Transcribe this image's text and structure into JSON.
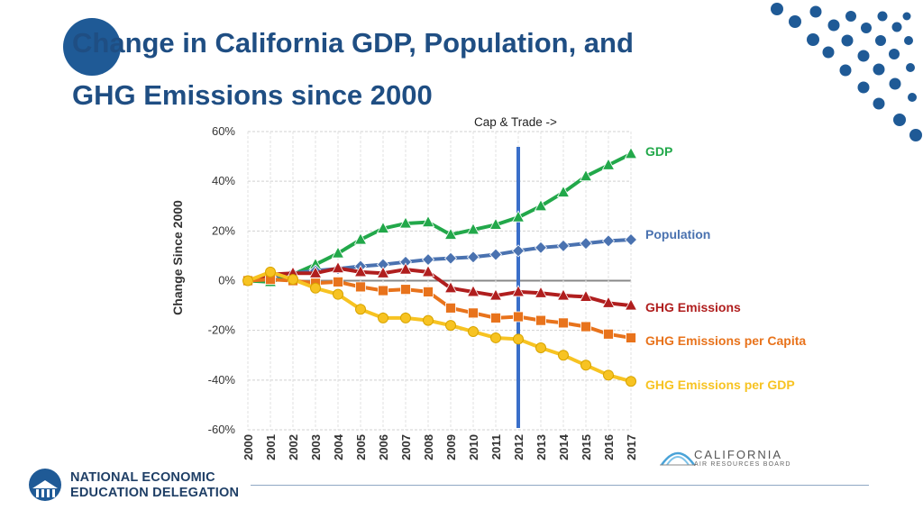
{
  "slide": {
    "title_line1": "Change in California GDP, Population, and",
    "title_line2": "GHG Emissions since 2000"
  },
  "footer": {
    "org_line1": "NATIONAL ECONOMIC",
    "org_line2": "EDUCATION DELEGATION",
    "carb_name": "CALIFORNIA",
    "carb_sub": "AIR RESOURCES BOARD"
  },
  "colors": {
    "title": "#1f4e83",
    "dots": "#1f5a96",
    "gdp": "#22a84a",
    "population": "#4a72b0",
    "ghg": "#b01e1e",
    "ghg_per_capita": "#e8731c",
    "ghg_per_gdp": "#f7c322",
    "marker_line": "#3a6fc9"
  },
  "chart_data": {
    "type": "line",
    "title": "",
    "xlabel": "",
    "ylabel": "Change Since 2000",
    "x": [
      "2000",
      "2001",
      "2002",
      "2003",
      "2004",
      "2005",
      "2006",
      "2007",
      "2008",
      "2009",
      "2010",
      "2011",
      "2012",
      "2013",
      "2014",
      "2015",
      "2016",
      "2017"
    ],
    "ylim": [
      -60,
      60
    ],
    "yticks": [
      60,
      40,
      20,
      0,
      -20,
      -40,
      -60
    ],
    "ytick_labels": [
      "60%",
      "40%",
      "20%",
      "0%",
      "-20%",
      "-40%",
      "-60%"
    ],
    "grid": true,
    "annotation": {
      "text": "Cap & Trade ->",
      "x": "2012"
    },
    "series": [
      {
        "name": "GDP",
        "marker": "triangle",
        "color": "#22a84a",
        "values": [
          0,
          -0.5,
          2.5,
          6.5,
          11,
          16.5,
          21,
          23,
          23.5,
          18.5,
          20.5,
          22.5,
          25.5,
          30,
          35.5,
          42,
          46.5,
          51
        ]
      },
      {
        "name": "Population",
        "marker": "diamond",
        "color": "#4a72b0",
        "values": [
          0,
          1.5,
          3,
          4,
          4.8,
          5.8,
          6.5,
          7.5,
          8.5,
          9,
          9.5,
          10.5,
          12,
          13.3,
          14,
          15,
          16,
          16.5
        ]
      },
      {
        "name": "GHG Emissions",
        "marker": "triangle",
        "color": "#b01e1e",
        "values": [
          0,
          2.5,
          3,
          3,
          5,
          3.5,
          3,
          4.5,
          3.5,
          -3,
          -4.5,
          -6,
          -4.5,
          -5,
          -6,
          -6.5,
          -9,
          -10
        ]
      },
      {
        "name": "GHG Emissions per Capita",
        "marker": "square",
        "color": "#e8731c",
        "values": [
          0,
          0.5,
          0,
          -1,
          -0.5,
          -2.5,
          -4,
          -3.5,
          -4.5,
          -11,
          -13,
          -15,
          -14.5,
          -16,
          -17,
          -18.5,
          -21.5,
          -23
        ]
      },
      {
        "name": "GHG Emissions per GDP",
        "marker": "circle",
        "color": "#f7c322",
        "values": [
          0,
          3.5,
          0.5,
          -3,
          -5.5,
          -11.5,
          -15,
          -15,
          -16,
          -18,
          -20.5,
          -23,
          -23.5,
          -27,
          -30,
          -34,
          -38,
          -40.5
        ]
      }
    ]
  }
}
